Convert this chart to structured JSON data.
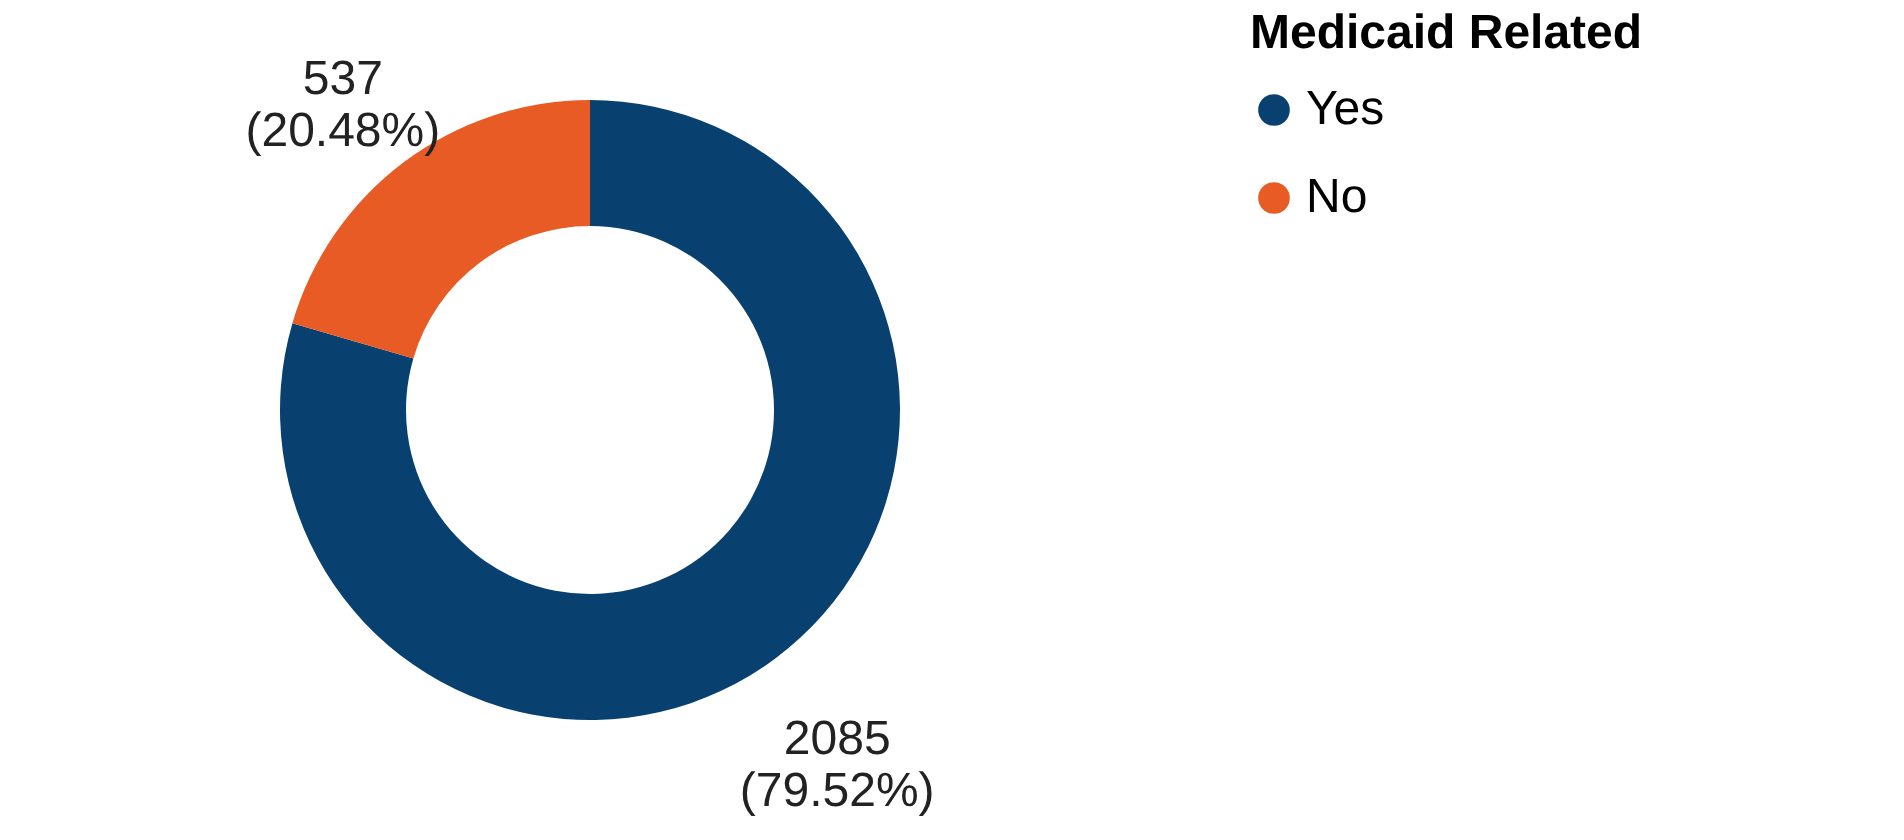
{
  "chart_data": {
    "type": "donut",
    "categories": [
      "Yes",
      "No"
    ],
    "values": [
      2085,
      537
    ],
    "colors": [
      "#08416f",
      "#e95b24"
    ],
    "value_labels": [
      "2085\n(79.52%)",
      "537\n(20.48%)"
    ],
    "legend_title": "Medicaid Related",
    "legend": "right"
  }
}
